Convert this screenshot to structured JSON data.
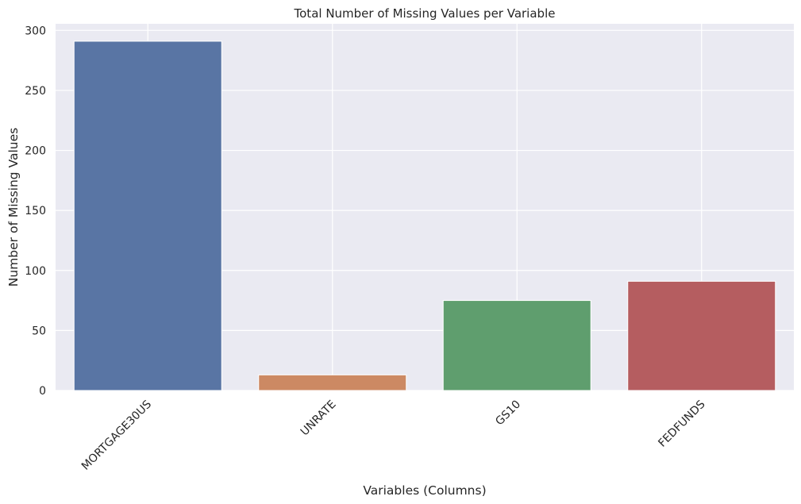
{
  "chart_data": {
    "type": "bar",
    "title": "Total Number of Missing Values per Variable",
    "xlabel": "Variables (Columns)",
    "ylabel": "Number of Missing Values",
    "categories": [
      "MORTGAGE30US",
      "UNRATE",
      "GS10",
      "FEDFUNDS"
    ],
    "values": [
      291,
      13,
      75,
      91
    ],
    "colors": [
      "#5975a4",
      "#cc8963",
      "#5f9e6e",
      "#b55d60"
    ],
    "yticks": [
      0,
      50,
      100,
      150,
      200,
      250,
      300
    ],
    "ylim": [
      0,
      305.5
    ],
    "grid": true,
    "background": "#eaeaf2",
    "gridcolor": "#ffffff"
  }
}
